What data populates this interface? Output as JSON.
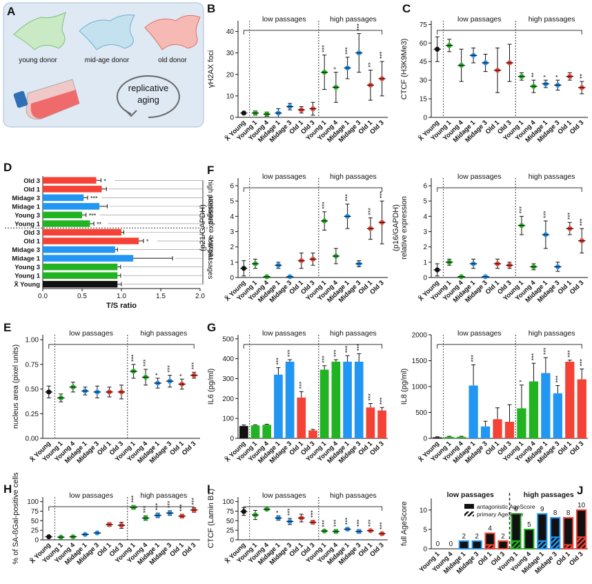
{
  "diagram": {
    "label": "A",
    "cells": [
      "young donor",
      "mid-age donor",
      "old donor"
    ],
    "process": [
      "replicative",
      "aging"
    ]
  },
  "chart_data": [
    {
      "type": "dot",
      "label": "B",
      "ylabel": "γH2AX foci",
      "groups": [
        "low passages",
        "high passages"
      ],
      "categories": [
        "X̄ Young",
        "Young 1",
        "Young 4",
        "Midage 1",
        "Midage 3",
        "Old 1",
        "Old 3",
        "Young 1",
        "Young 4",
        "Midage 1",
        "Midage 3",
        "Old 1",
        "Old 3"
      ],
      "colors": [
        "#111111",
        "#22b322",
        "#22b322",
        "#2196f3",
        "#2196f3",
        "#f44336",
        "#f44336",
        "#22b322",
        "#22b322",
        "#2196f3",
        "#2196f3",
        "#f44336",
        "#f44336"
      ],
      "values": [
        2,
        2,
        1.5,
        2,
        5,
        3.5,
        4,
        21,
        14,
        23,
        30,
        15,
        18
      ],
      "errors": [
        0.5,
        1,
        1,
        2,
        1.5,
        1.5,
        3,
        8,
        7,
        5,
        9,
        7,
        8
      ],
      "annotations": [
        null,
        null,
        null,
        null,
        null,
        null,
        null,
        "***",
        "*",
        "***",
        "***",
        "**",
        "***"
      ],
      "ylim": [
        0,
        45
      ],
      "yticks": [
        0,
        10,
        20,
        30,
        40
      ]
    },
    {
      "type": "dot",
      "label": "C",
      "ylabel": "CTCF (H3K9Me3)",
      "groups": [
        "low passages",
        "high passages"
      ],
      "categories": [
        "X̄ Young",
        "Young 1",
        "Young 4",
        "Midage 1",
        "Midage 3",
        "Old 1",
        "Old 3",
        "Young 1",
        "Young 4",
        "Midage 1",
        "Midage 3",
        "Old 1",
        "Old 3"
      ],
      "colors": [
        "#111111",
        "#22b322",
        "#22b322",
        "#2196f3",
        "#2196f3",
        "#f44336",
        "#f44336",
        "#22b322",
        "#22b322",
        "#2196f3",
        "#2196f3",
        "#f44336",
        "#f44336"
      ],
      "values": [
        55,
        58,
        42,
        50,
        44,
        38,
        44,
        33,
        25,
        27,
        26,
        33,
        24
      ],
      "errors": [
        10,
        5,
        13,
        6,
        7,
        18,
        15,
        3,
        5,
        3,
        4,
        3,
        5
      ],
      "annotations": [
        null,
        null,
        null,
        null,
        null,
        null,
        null,
        null,
        "**",
        "*",
        "*",
        null,
        "**"
      ],
      "ylim": [
        0,
        78
      ],
      "yticks": [
        0,
        15,
        30,
        45,
        60,
        75
      ]
    },
    {
      "type": "barh",
      "label": "D",
      "xlabel": "T/S ratio",
      "groups": [
        "high passages",
        "low passages"
      ],
      "categories": [
        "Old 3",
        "Old 1",
        "Midage 3",
        "Midage 1",
        "Young 3",
        "Young 1",
        "Old 3",
        "Old 1",
        "Midage 3",
        "Midage 1",
        "Young 3",
        "Young 1",
        "X̄ Young"
      ],
      "colors": [
        "#f44336",
        "#f44336",
        "#2196f3",
        "#2196f3",
        "#22b322",
        "#22b322",
        "#f44336",
        "#f44336",
        "#2196f3",
        "#2196f3",
        "#22b322",
        "#22b322",
        "#111111"
      ],
      "values": [
        0.68,
        0.75,
        0.52,
        0.72,
        0.5,
        0.6,
        1.0,
        1.22,
        0.92,
        1.15,
        0.95,
        0.95,
        0.95
      ],
      "errors": [
        0.06,
        0.06,
        0.05,
        0.1,
        0.05,
        0.05,
        0.03,
        0.06,
        0.03,
        0.5,
        0.04,
        0.04,
        0.05
      ],
      "annotations": [
        "*",
        null,
        "***",
        null,
        "***",
        "**",
        null,
        "*",
        null,
        null,
        null,
        null,
        null
      ],
      "xlim": [
        0,
        2
      ],
      "xticks": [
        {
          "value": 0,
          "label": "0.0"
        },
        {
          "value": 0.5,
          "label": "0.5"
        },
        {
          "value": 1,
          "label": "1.0"
        },
        {
          "value": 1.5,
          "label": "1.5"
        },
        {
          "value": 2,
          "label": "2.0"
        }
      ]
    },
    {
      "type": "dot",
      "label": "F",
      "ylabel": [
        "relative expression",
        "(p21/GAPDH)"
      ],
      "groups": [
        "low passages",
        "high passages"
      ],
      "categories": [
        "X̄ Young",
        "Young 1",
        "Young 4",
        "Midage 1",
        "Midage 3",
        "Old 1",
        "Old 3",
        "Young 1",
        "Young 4",
        "Midage 1",
        "Midage 3",
        "Old 1",
        "Old 3"
      ],
      "colors": [
        "#111111",
        "#22b322",
        "#22b322",
        "#2196f3",
        "#2196f3",
        "#f44336",
        "#f44336",
        "#22b322",
        "#22b322",
        "#2196f3",
        "#2196f3",
        "#f44336",
        "#f44336"
      ],
      "values": [
        0.6,
        0.9,
        0.05,
        0.8,
        0.05,
        1.1,
        1.2,
        3.7,
        1.4,
        4.0,
        0.9,
        3.2,
        3.6
      ],
      "errors": [
        0.5,
        0.3,
        0.05,
        0.2,
        0.05,
        0.5,
        0.4,
        0.6,
        0.5,
        0.8,
        0.2,
        0.7,
        1.4
      ],
      "annotations": [
        null,
        null,
        null,
        null,
        null,
        null,
        null,
        "***",
        null,
        "***",
        null,
        "***",
        "***"
      ],
      "ylim": [
        0,
        6.5
      ],
      "yticks": [
        0,
        1,
        2,
        3,
        4,
        5,
        6
      ]
    },
    {
      "type": "dot",
      "ylabel": [
        "relative expression",
        "(p16/GAPDH)"
      ],
      "groups": [
        "low passages",
        "high passages"
      ],
      "categories": [
        "X̄ Young",
        "Young 1",
        "Young 4",
        "Midage 1",
        "Midage 3",
        "Old 1",
        "Old 3",
        "Young 1",
        "Young 4",
        "Midage 1",
        "Midage 3",
        "Old 1",
        "Old 3"
      ],
      "colors": [
        "#111111",
        "#22b322",
        "#22b322",
        "#2196f3",
        "#2196f3",
        "#f44336",
        "#f44336",
        "#22b322",
        "#22b322",
        "#2196f3",
        "#2196f3",
        "#f44336",
        "#f44336"
      ],
      "values": [
        0.5,
        1.0,
        0.05,
        0.9,
        0.05,
        0.9,
        0.8,
        3.4,
        0.7,
        2.8,
        0.7,
        3.2,
        2.4
      ],
      "errors": [
        0.4,
        0.2,
        0.05,
        0.3,
        0.05,
        0.3,
        0.2,
        0.6,
        0.2,
        0.9,
        0.3,
        0.4,
        0.8
      ],
      "annotations": [
        null,
        null,
        null,
        null,
        null,
        null,
        null,
        "***",
        null,
        "***",
        null,
        "***",
        "***"
      ],
      "ylim": [
        0,
        6.5
      ],
      "yticks": [
        0,
        1,
        2,
        3,
        4,
        5,
        6
      ]
    },
    {
      "type": "dot",
      "label": "E",
      "ylabel": "nucleus area (pixel units)",
      "groups": [
        "low passages",
        "high passages"
      ],
      "categories": [
        "X̄ Young",
        "Young 1",
        "Young 4",
        "Midage 1",
        "Midage 3",
        "Old 1",
        "Old 3",
        "Young 1",
        "Young 4",
        "Midage 1",
        "Midage 3",
        "Old 1",
        "Old 3"
      ],
      "colors": [
        "#111111",
        "#22b322",
        "#22b322",
        "#2196f3",
        "#2196f3",
        "#f44336",
        "#f44336",
        "#22b322",
        "#22b322",
        "#2196f3",
        "#2196f3",
        "#f44336",
        "#f44336"
      ],
      "values": [
        0.47,
        0.41,
        0.52,
        0.48,
        0.47,
        0.47,
        0.47,
        0.68,
        0.62,
        0.56,
        0.58,
        0.55,
        0.64
      ],
      "errors": [
        0.06,
        0.04,
        0.05,
        0.04,
        0.06,
        0.05,
        0.07,
        0.07,
        0.08,
        0.05,
        0.06,
        0.05,
        0.03
      ],
      "annotations": [
        null,
        null,
        null,
        null,
        null,
        null,
        null,
        "***",
        "***",
        "*",
        "***",
        "*",
        "***"
      ],
      "ylim": [
        0,
        1.05
      ],
      "yticks": [
        {
          "value": 0,
          "label": "0.00"
        },
        {
          "value": 0.25,
          "label": "0.25"
        },
        {
          "value": 0.5,
          "label": "0.50"
        },
        {
          "value": 0.75,
          "label": "0.75"
        },
        {
          "value": 1,
          "label": "1.00"
        }
      ]
    },
    {
      "type": "bar",
      "label": "G",
      "ylabel": "IL6 (pg/ml)",
      "groups": [
        "low passages",
        "high passages"
      ],
      "categories": [
        "X̄ Young",
        "Young 1",
        "Young 4",
        "Midage 1",
        "Midage 3",
        "Old 1",
        "Old 3",
        "Young 1",
        "Young 4",
        "Midage 1",
        "Midage 3",
        "Old 1",
        "Old 3"
      ],
      "colors": [
        "#111111",
        "#22b322",
        "#22b322",
        "#2196f3",
        "#2196f3",
        "#f44336",
        "#f44336",
        "#22b322",
        "#22b322",
        "#2196f3",
        "#2196f3",
        "#f44336",
        "#f44336"
      ],
      "values": [
        62,
        65,
        68,
        320,
        385,
        205,
        40,
        345,
        385,
        385,
        385,
        155,
        140
      ],
      "errors": [
        5,
        3,
        3,
        35,
        10,
        30,
        5,
        20,
        10,
        30,
        40,
        20,
        15
      ],
      "annotations": [
        null,
        null,
        null,
        "***",
        "***",
        "***",
        null,
        "***",
        "***",
        "***",
        "***",
        "***",
        "***"
      ],
      "ylim": [
        0,
        520
      ],
      "yticks": [
        0,
        100,
        200,
        300,
        400,
        500
      ]
    },
    {
      "type": "bar",
      "ylabel": "IL8 (pg/ml)",
      "groups": [
        "low passages",
        "high passages"
      ],
      "categories": [
        "X̄ Young",
        "Young 1",
        "Young 4",
        "Midage 1",
        "Midage 3",
        "Old 1",
        "Old 3",
        "Young 1",
        "Young 4",
        "Midage 1",
        "Midage 3",
        "Old 1",
        "Old 3"
      ],
      "colors": [
        "#111111",
        "#22b322",
        "#22b322",
        "#2196f3",
        "#2196f3",
        "#f44336",
        "#f44336",
        "#22b322",
        "#22b322",
        "#2196f3",
        "#2196f3",
        "#f44336",
        "#f44336"
      ],
      "values": [
        20,
        30,
        30,
        1020,
        230,
        370,
        320,
        580,
        1100,
        1260,
        870,
        1480,
        1140
      ],
      "errors": [
        10,
        10,
        10,
        400,
        100,
        220,
        330,
        450,
        350,
        300,
        150,
        30,
        200
      ],
      "annotations": [
        null,
        null,
        null,
        "***",
        null,
        null,
        null,
        "*",
        "***",
        "***",
        "***",
        "***",
        "***"
      ],
      "ylim": [
        0,
        2000
      ],
      "yticks": [
        0,
        500,
        1000,
        1500,
        2000
      ]
    },
    {
      "type": "dot",
      "label": "H",
      "ylabel": "% of SA-ßGal-positive cells",
      "groups": [
        "low passages",
        "high passages"
      ],
      "categories": [
        "X̄ Young",
        "Young 1",
        "Young 4",
        "Midage 1",
        "Midage 3",
        "Old 1",
        "Old 3",
        "Young 1",
        "Young 4",
        "Midage 1",
        "Midage 3",
        "Old 1",
        "Old 3"
      ],
      "colors": [
        "#111111",
        "#22b322",
        "#22b322",
        "#2196f3",
        "#2196f3",
        "#f44336",
        "#f44336",
        "#22b322",
        "#22b322",
        "#2196f3",
        "#2196f3",
        "#f44336",
        "#f44336"
      ],
      "values": [
        8,
        7,
        8,
        14,
        18,
        40,
        38,
        85,
        57,
        64,
        70,
        62,
        78
      ],
      "errors": [
        2,
        3,
        2,
        3,
        2,
        5,
        8,
        5,
        6,
        6,
        6,
        5,
        6
      ],
      "annotations": [
        null,
        null,
        null,
        null,
        null,
        null,
        null,
        "***",
        "***",
        "***",
        "***",
        "***",
        "***"
      ],
      "ylim": [
        0,
        112
      ],
      "yticks": [
        0,
        25,
        50,
        75,
        100
      ]
    },
    {
      "type": "dot",
      "label": "I",
      "ylabel": "CTCF (Lamin B1)",
      "groups": [
        "low passages",
        "high passages"
      ],
      "categories": [
        "X̄ Young",
        "Young 1",
        "Young 4",
        "Midage 1",
        "Midage 3",
        "Old 1",
        "Old 3",
        "Young 1",
        "Young 4",
        "Midage 1",
        "Midage 3",
        "Old 1",
        "Old 3"
      ],
      "colors": [
        "#111111",
        "#22b322",
        "#22b322",
        "#2196f3",
        "#2196f3",
        "#f44336",
        "#f44336",
        "#22b322",
        "#22b322",
        "#2196f3",
        "#2196f3",
        "#f44336",
        "#f44336"
      ],
      "values": [
        74,
        65,
        80,
        57,
        48,
        57,
        46,
        23,
        22,
        28,
        22,
        24,
        16
      ],
      "errors": [
        10,
        12,
        3,
        6,
        8,
        10,
        5,
        3,
        5,
        4,
        5,
        3,
        4
      ],
      "annotations": [
        null,
        null,
        null,
        "*",
        "***",
        null,
        "***",
        "***",
        "***",
        "***",
        "***",
        "***",
        "***"
      ],
      "ylim": [
        0,
        112
      ],
      "yticks": [
        0,
        25,
        50,
        75,
        100
      ]
    },
    {
      "type": "stacked_bar",
      "label": "J",
      "ylabel": "full AgeScore",
      "groups": [
        "low passages",
        "high passages"
      ],
      "legend": "upper left",
      "categories": [
        "Young 1",
        "Young 4",
        "Midage 1",
        "Midage 3",
        "Old 1",
        "Old 3",
        "Young 1",
        "Young 4",
        "Midage 1",
        "Midage 3",
        "Old 1",
        "Old 3"
      ],
      "colors": [
        "#22b322",
        "#22b322",
        "#2196f3",
        "#2196f3",
        "#f44336",
        "#f44336",
        "#22b322",
        "#22b322",
        "#2196f3",
        "#2196f3",
        "#f44336",
        "#f44336"
      ],
      "series": [
        {
          "name": "primary AgeScore",
          "values": [
            0,
            0,
            0,
            0,
            1,
            0,
            2,
            0,
            2,
            3,
            1,
            3
          ]
        },
        {
          "name": "antagonistic AgeScore",
          "values": [
            0,
            0,
            2,
            2,
            3,
            2,
            7,
            5,
            7,
            5,
            7,
            7
          ]
        }
      ],
      "totals": [
        0,
        0,
        2,
        2,
        4,
        2,
        9,
        5,
        9,
        8,
        8,
        10
      ],
      "ylim": [
        0,
        13
      ],
      "yticks": [
        0,
        5,
        10
      ]
    }
  ]
}
